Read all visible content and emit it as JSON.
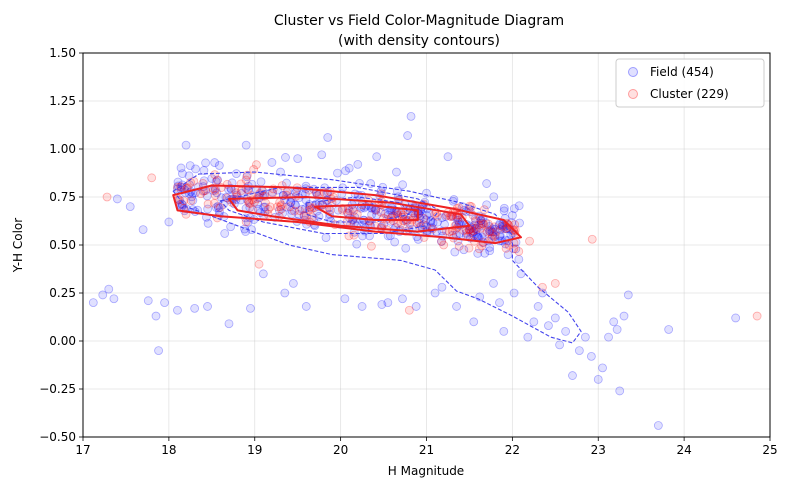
{
  "chart_data": {
    "type": "scatter",
    "title": "Cluster vs Field Color-Magnitude Diagram",
    "subtitle": "(with density contours)",
    "xlabel": "H Magnitude",
    "ylabel": "Y-H Color",
    "xlim": [
      17,
      25
    ],
    "ylim": [
      -0.5,
      1.5
    ],
    "xticks": [
      "17",
      "18",
      "19",
      "20",
      "21",
      "22",
      "23",
      "24",
      "25"
    ],
    "yticks": [
      "−0.50",
      "−0.25",
      "0.00",
      "0.25",
      "0.50",
      "0.75",
      "1.00",
      "1.25",
      "1.50"
    ],
    "grid": true,
    "legend_position": "top-right",
    "series": [
      {
        "name": "Field (454)",
        "color": "#0000ff",
        "count": 454,
        "points": [
          [
            17.12,
            0.2
          ],
          [
            17.23,
            0.24
          ],
          [
            17.3,
            0.27
          ],
          [
            17.36,
            0.22
          ],
          [
            17.4,
            0.74
          ],
          [
            17.55,
            0.7
          ],
          [
            17.7,
            0.58
          ],
          [
            17.76,
            0.21
          ],
          [
            17.85,
            0.13
          ],
          [
            17.88,
            -0.05
          ],
          [
            17.95,
            0.2
          ],
          [
            18.0,
            0.62
          ],
          [
            18.1,
            0.16
          ],
          [
            18.15,
            0.7
          ],
          [
            18.2,
            1.02
          ],
          [
            18.3,
            0.17
          ],
          [
            18.45,
            0.18
          ],
          [
            18.55,
            0.83
          ],
          [
            18.65,
            0.56
          ],
          [
            18.7,
            0.09
          ],
          [
            18.9,
            1.02
          ],
          [
            18.95,
            0.17
          ],
          [
            19.1,
            0.35
          ],
          [
            19.2,
            0.93
          ],
          [
            19.3,
            0.88
          ],
          [
            19.35,
            0.25
          ],
          [
            19.45,
            0.3
          ],
          [
            19.5,
            0.95
          ],
          [
            19.6,
            0.18
          ],
          [
            19.7,
            0.6
          ],
          [
            19.78,
            0.97
          ],
          [
            19.85,
            1.06
          ],
          [
            20.05,
            0.22
          ],
          [
            20.1,
            0.9
          ],
          [
            20.2,
            0.92
          ],
          [
            20.25,
            0.18
          ],
          [
            20.35,
            0.82
          ],
          [
            20.42,
            0.96
          ],
          [
            20.48,
            0.19
          ],
          [
            20.55,
            0.2
          ],
          [
            20.65,
            0.88
          ],
          [
            20.72,
            0.22
          ],
          [
            20.78,
            1.07
          ],
          [
            20.82,
            1.17
          ],
          [
            20.88,
            0.18
          ],
          [
            21.0,
            0.77
          ],
          [
            21.05,
            0.62
          ],
          [
            21.1,
            0.25
          ],
          [
            21.18,
            0.28
          ],
          [
            21.25,
            0.96
          ],
          [
            21.35,
            0.18
          ],
          [
            21.42,
            0.7
          ],
          [
            21.5,
            0.6
          ],
          [
            21.55,
            0.1
          ],
          [
            21.62,
            0.23
          ],
          [
            21.7,
            0.82
          ],
          [
            21.78,
            0.3
          ],
          [
            21.85,
            0.2
          ],
          [
            21.9,
            0.05
          ],
          [
            21.95,
            0.45
          ],
          [
            22.02,
            0.25
          ],
          [
            22.1,
            0.35
          ],
          [
            22.18,
            0.02
          ],
          [
            22.25,
            0.1
          ],
          [
            22.3,
            0.18
          ],
          [
            22.35,
            0.25
          ],
          [
            22.42,
            0.08
          ],
          [
            22.5,
            0.12
          ],
          [
            22.55,
            -0.02
          ],
          [
            22.62,
            0.05
          ],
          [
            22.7,
            -0.18
          ],
          [
            22.78,
            -0.05
          ],
          [
            22.85,
            0.02
          ],
          [
            22.92,
            -0.08
          ],
          [
            23.0,
            -0.2
          ],
          [
            23.05,
            -0.14
          ],
          [
            23.12,
            0.02
          ],
          [
            23.18,
            0.1
          ],
          [
            23.22,
            0.06
          ],
          [
            23.25,
            -0.26
          ],
          [
            23.3,
            0.13
          ],
          [
            23.35,
            0.24
          ],
          [
            23.7,
            -0.44
          ],
          [
            23.82,
            0.06
          ],
          [
            24.6,
            0.12
          ]
        ]
      },
      {
        "name": "Cluster (229)",
        "color": "#ff0000",
        "count": 229,
        "points": [
          [
            17.28,
            0.75
          ],
          [
            17.8,
            0.85
          ],
          [
            18.2,
            0.66
          ],
          [
            18.4,
            0.78
          ],
          [
            18.9,
            0.62
          ],
          [
            19.05,
            0.4
          ],
          [
            19.3,
            0.7
          ],
          [
            19.6,
            0.65
          ],
          [
            19.9,
            0.72
          ],
          [
            20.1,
            0.68
          ],
          [
            20.4,
            0.6
          ],
          [
            20.6,
            0.65
          ],
          [
            20.8,
            0.16
          ],
          [
            21.0,
            0.6
          ],
          [
            21.2,
            0.5
          ],
          [
            21.5,
            0.58
          ],
          [
            21.8,
            0.55
          ],
          [
            22.2,
            0.52
          ],
          [
            22.35,
            0.28
          ],
          [
            22.5,
            0.3
          ],
          [
            22.93,
            0.53
          ],
          [
            24.85,
            0.13
          ]
        ]
      }
    ]
  }
}
